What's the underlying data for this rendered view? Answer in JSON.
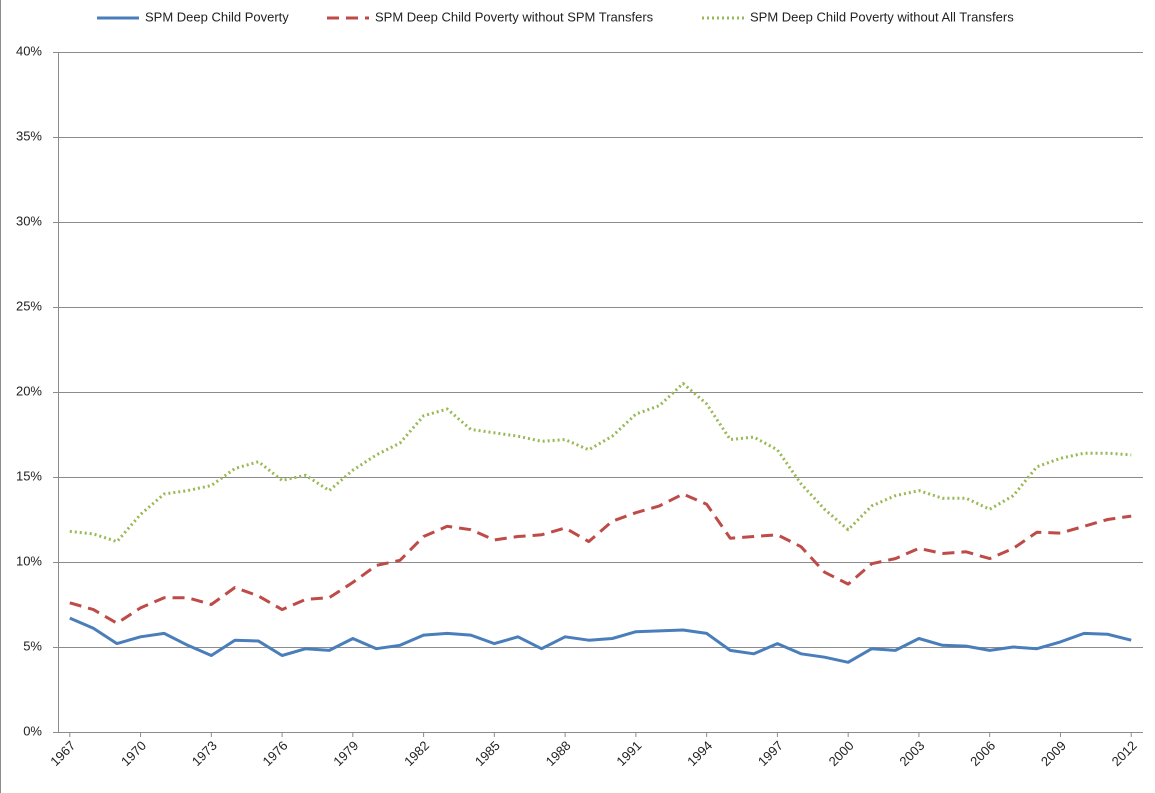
{
  "chart_data": {
    "type": "line",
    "x": [
      1967,
      1968,
      1969,
      1970,
      1971,
      1972,
      1973,
      1974,
      1975,
      1976,
      1977,
      1978,
      1979,
      1980,
      1981,
      1982,
      1983,
      1984,
      1985,
      1986,
      1987,
      1988,
      1989,
      1990,
      1991,
      1992,
      1993,
      1994,
      1995,
      1996,
      1997,
      1998,
      1999,
      2000,
      2001,
      2002,
      2003,
      2004,
      2005,
      2006,
      2007,
      2008,
      2009,
      2010,
      2011,
      2012
    ],
    "xlim": [
      1966.5,
      2012.5
    ],
    "xticks": [
      1967,
      1970,
      1973,
      1976,
      1979,
      1982,
      1985,
      1988,
      1991,
      1994,
      1997,
      2000,
      2003,
      2006,
      2009,
      2012
    ],
    "ylim": [
      0,
      40
    ],
    "yticks": [
      {
        "value": 0,
        "label": "0%"
      },
      {
        "value": 5,
        "label": "5%"
      },
      {
        "value": 10,
        "label": "10%"
      },
      {
        "value": 15,
        "label": "15%"
      },
      {
        "value": 20,
        "label": "20%"
      },
      {
        "value": 25,
        "label": "25%"
      },
      {
        "value": 30,
        "label": "30%"
      },
      {
        "value": 35,
        "label": "35%"
      },
      {
        "value": 40,
        "label": "40%"
      }
    ],
    "grid": true,
    "legend": "top",
    "series": [
      {
        "name": "SPM Deep Child Poverty",
        "color": "#4a7ebb",
        "dash": "solid",
        "values": [
          6.7,
          6.1,
          5.2,
          5.6,
          5.8,
          5.1,
          4.5,
          5.4,
          5.35,
          4.5,
          4.9,
          4.8,
          5.5,
          4.9,
          5.1,
          5.7,
          5.8,
          5.7,
          5.2,
          5.6,
          4.9,
          5.6,
          5.4,
          5.5,
          5.9,
          5.95,
          6.0,
          5.8,
          4.8,
          4.6,
          5.2,
          4.6,
          4.4,
          4.1,
          4.9,
          4.8,
          5.5,
          5.1,
          5.05,
          4.8,
          5.0,
          4.9,
          5.3,
          5.8,
          5.75,
          5.4
        ]
      },
      {
        "name": "SPM Deep Child Poverty without SPM Transfers",
        "color": "#be4b48",
        "dash": "dashed",
        "values": [
          7.6,
          7.2,
          6.4,
          7.3,
          7.9,
          7.9,
          7.5,
          8.5,
          8.0,
          7.2,
          7.8,
          7.9,
          8.8,
          9.8,
          10.1,
          11.5,
          12.1,
          11.9,
          11.3,
          11.5,
          11.6,
          12.0,
          11.2,
          12.4,
          12.9,
          13.3,
          14.0,
          13.4,
          11.4,
          11.5,
          11.6,
          10.9,
          9.4,
          8.7,
          9.9,
          10.2,
          10.8,
          10.5,
          10.6,
          10.2,
          10.8,
          11.75,
          11.7,
          12.1,
          12.5,
          12.7
        ]
      },
      {
        "name": "SPM Deep Child Poverty without All Transfers",
        "color": "#98b954",
        "dash": "dotted",
        "values": [
          11.8,
          11.65,
          11.2,
          12.8,
          14.0,
          14.2,
          14.5,
          15.5,
          15.9,
          14.8,
          15.1,
          14.2,
          15.4,
          16.3,
          17.0,
          18.6,
          19.0,
          17.8,
          17.6,
          17.4,
          17.1,
          17.2,
          16.6,
          17.4,
          18.7,
          19.2,
          20.5,
          19.3,
          17.2,
          17.35,
          16.6,
          14.6,
          13.1,
          11.9,
          13.3,
          13.9,
          14.2,
          13.75,
          13.75,
          13.1,
          13.9,
          15.6,
          16.1,
          16.4,
          16.4,
          16.3
        ]
      }
    ]
  }
}
